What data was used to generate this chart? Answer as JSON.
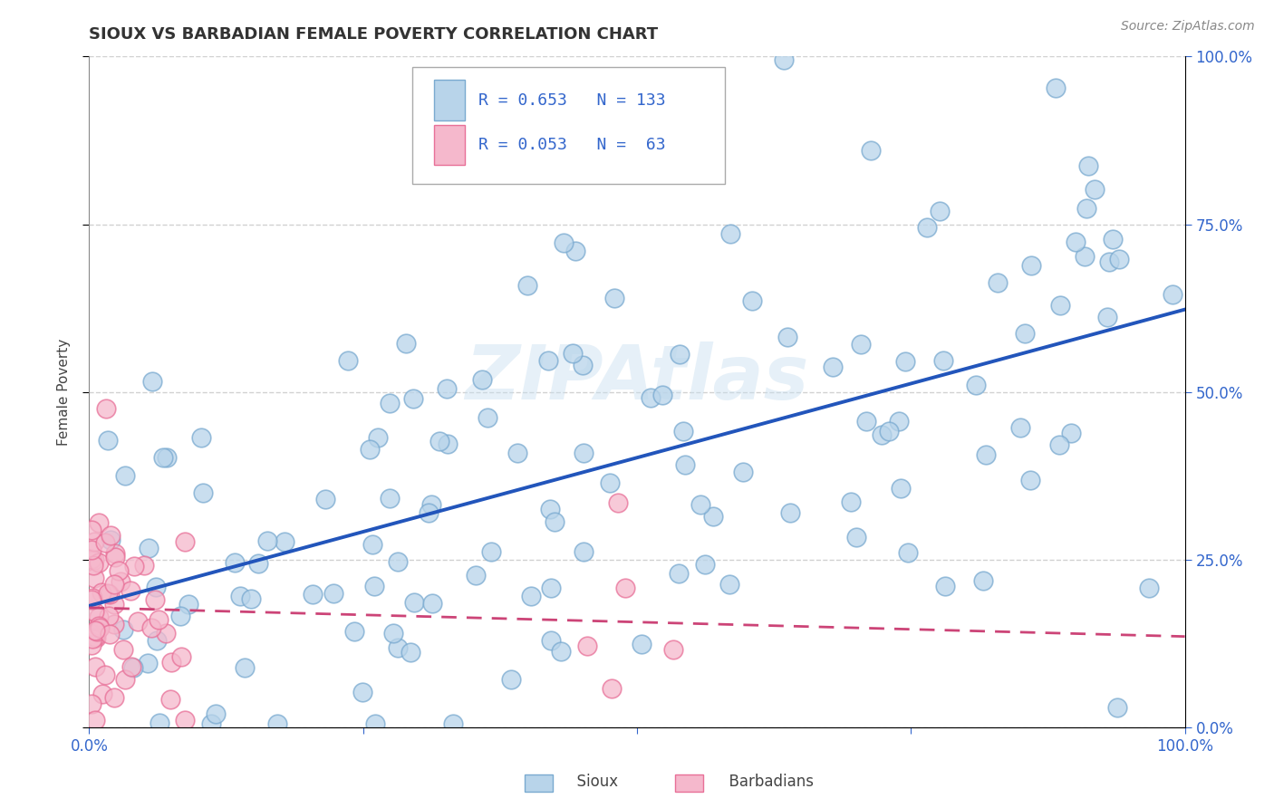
{
  "title": "SIOUX VS BARBADIAN FEMALE POVERTY CORRELATION CHART",
  "source": "Source: ZipAtlas.com",
  "ylabel": "Female Poverty",
  "sioux_color": "#b8d4ea",
  "sioux_edge_color": "#7aaad0",
  "barbadian_color": "#f5b8cc",
  "barbadian_edge_color": "#e87098",
  "regression_sioux_color": "#2255bb",
  "regression_barbadian_color": "#cc4477",
  "R_sioux": 0.653,
  "N_sioux": 133,
  "R_barbadian": 0.053,
  "N_barbadian": 63,
  "xlim": [
    0,
    1
  ],
  "ylim": [
    0,
    1
  ],
  "watermark_text": "ZIPAtlas",
  "legend_R1": "R = 0.653",
  "legend_N1": "N = 133",
  "legend_R2": "R = 0.053",
  "legend_N2": "N =  63",
  "label_sioux": "Sioux",
  "label_barbadian": "Barbadians",
  "sioux_seed": 77,
  "barbadian_seed": 42,
  "title_fontsize": 13,
  "source_fontsize": 10,
  "tick_fontsize": 12,
  "axis_label_fontsize": 11
}
